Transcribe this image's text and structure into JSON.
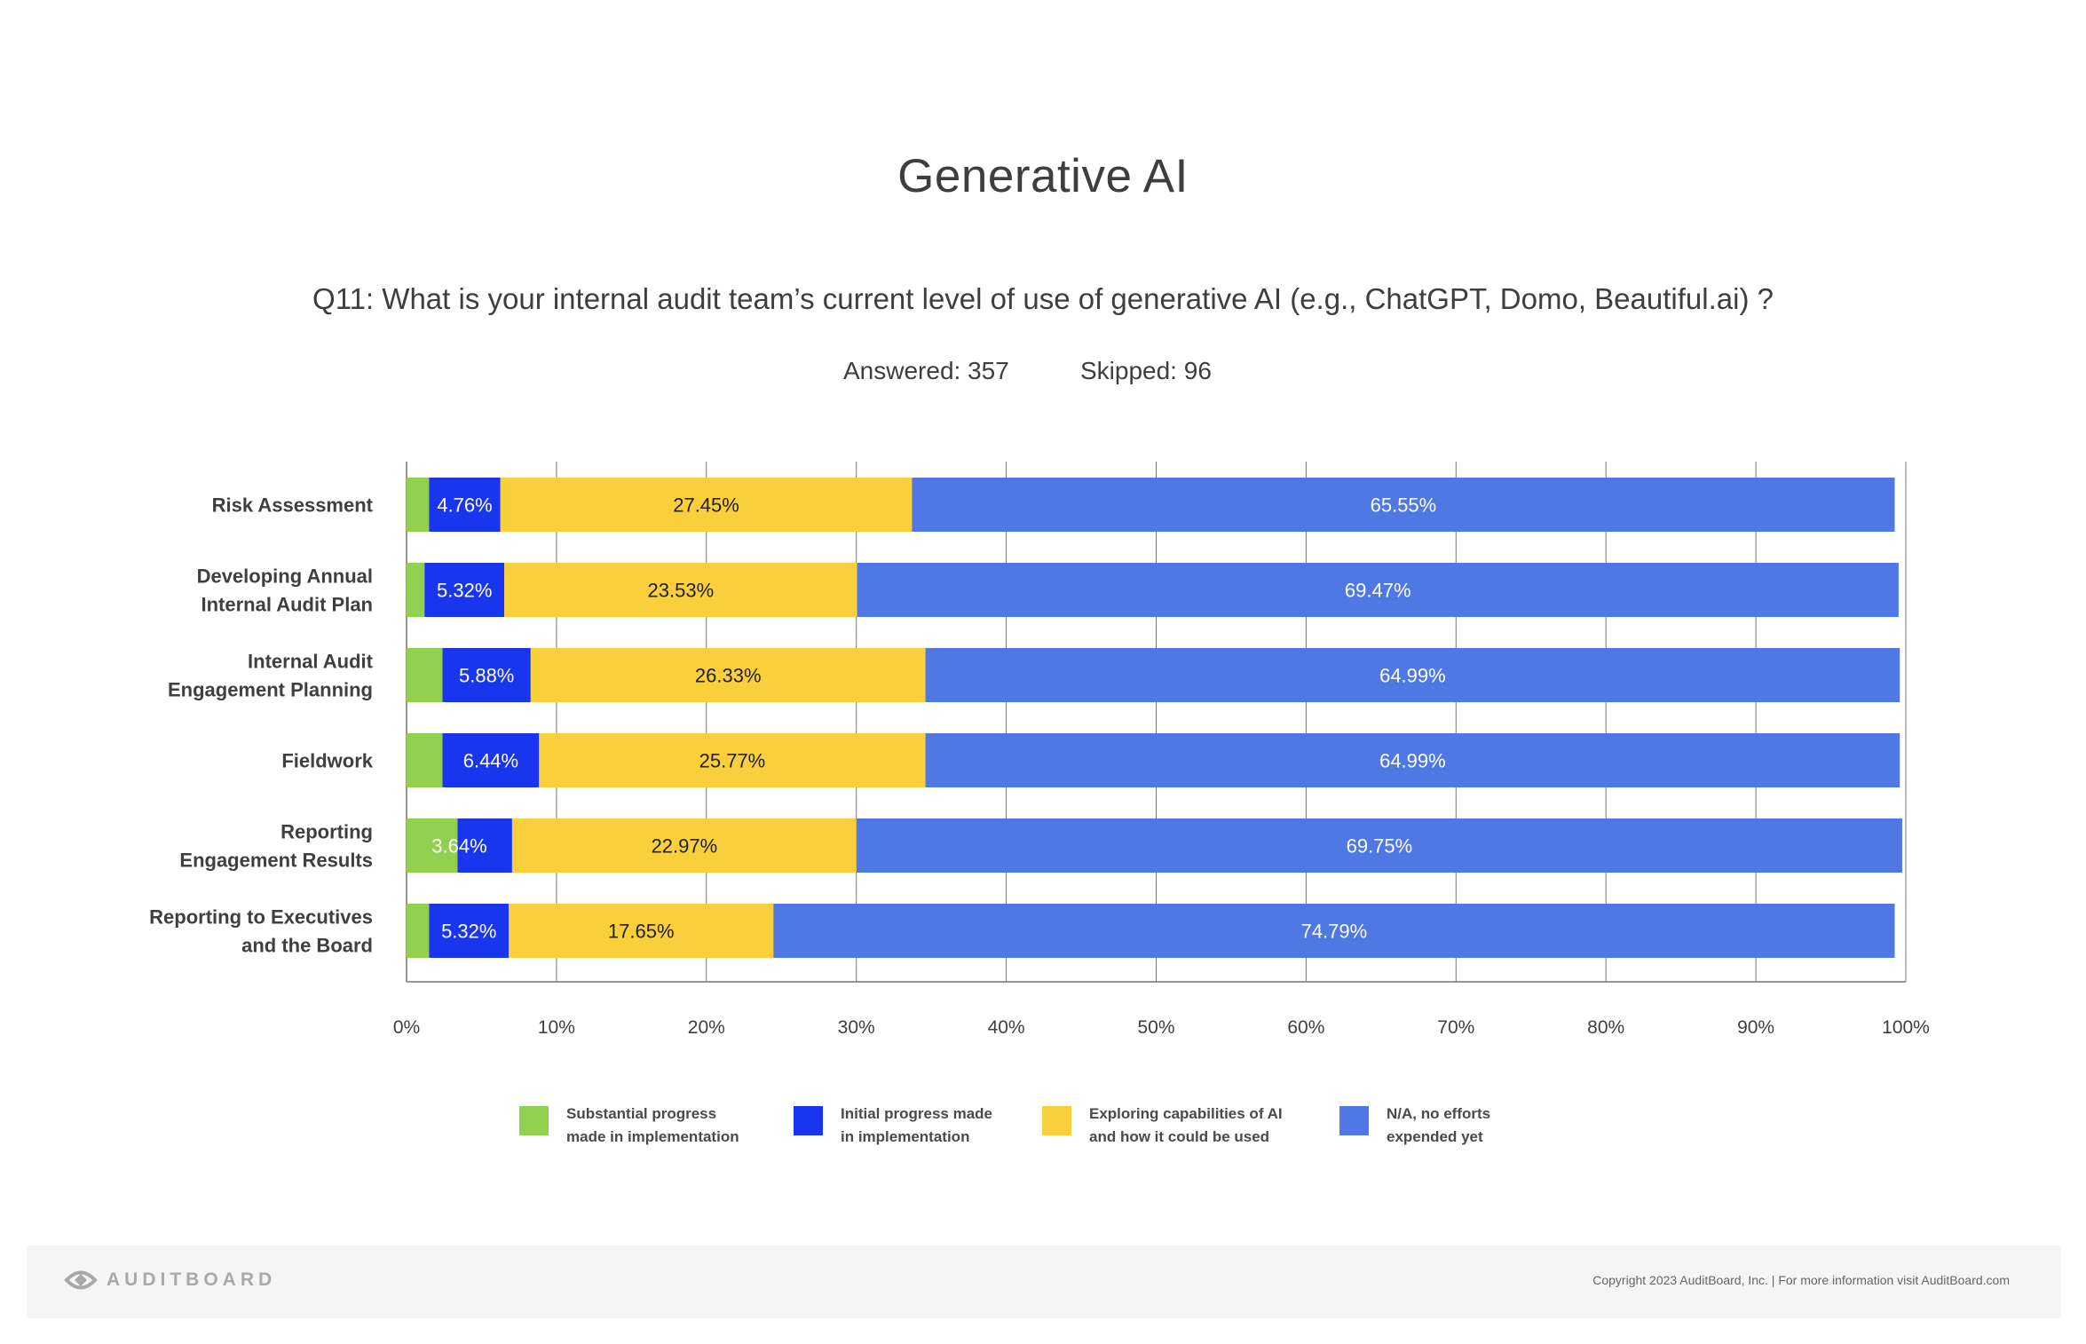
{
  "header": {
    "title": "Generative AI",
    "question": "Q11: What is your internal audit team’s current level of use of generative AI (e.g., ChatGPT, Domo, Beautiful.ai) ?",
    "answered": "Answered: 357",
    "skipped": "Skipped: 96"
  },
  "colors": {
    "substantial": "#92d14f",
    "initial": "#1a35ee",
    "exploring": "#f9d03b",
    "na": "#4f78e5",
    "grid": "#777777"
  },
  "chart_data": {
    "type": "bar",
    "orientation": "horizontal",
    "stacked": true,
    "categories": [
      [
        "Risk Assessment"
      ],
      [
        "Developing Annual",
        "Internal Audit Plan"
      ],
      [
        "Internal Audit",
        "Engagement Planning"
      ],
      [
        "Fieldwork"
      ],
      [
        "Reporting",
        "Engagement Results"
      ],
      [
        "Reporting to Executives",
        "and the Board"
      ]
    ],
    "series": [
      {
        "name": "Substantial progress made in implementation",
        "key": "substantial",
        "values": [
          1.5,
          1.2,
          2.4,
          2.4,
          3.4,
          1.5
        ]
      },
      {
        "name": "Initial progress made in implementation",
        "key": "initial",
        "values": [
          4.76,
          5.32,
          5.88,
          6.44,
          3.64,
          5.32
        ],
        "labels": [
          "4.76%",
          "5.32%",
          "5.88%",
          "6.44%",
          "",
          "5.32%"
        ]
      },
      {
        "name": "Exploring capabilities of AI and how it could be used",
        "key": "exploring",
        "values": [
          27.45,
          23.53,
          26.33,
          25.77,
          22.97,
          17.65
        ],
        "labels": [
          "27.45%",
          "23.53%",
          "26.33%",
          "25.77%",
          "22.97%",
          "17.65%"
        ]
      },
      {
        "name": "N/A, no efforts expended yet",
        "key": "na",
        "values": [
          65.55,
          69.47,
          64.99,
          64.99,
          69.75,
          74.79
        ],
        "labels": [
          "65.55%",
          "69.47%",
          "64.99%",
          "64.99%",
          "69.75%",
          "74.79%"
        ]
      }
    ],
    "extra_labels": {
      "row": 4,
      "text": "3.64%"
    },
    "xlim": [
      0,
      100
    ],
    "xticks": [
      "0%",
      "10%",
      "20%",
      "30%",
      "40%",
      "50%",
      "60%",
      "70%",
      "80%",
      "90%",
      "100%"
    ]
  },
  "legend": [
    {
      "key": "substantial",
      "line1": "Substantial progress",
      "line2": "made in implementation"
    },
    {
      "key": "initial",
      "line1": "Initial progress made",
      "line2": "in implementation"
    },
    {
      "key": "exploring",
      "line1": "Exploring capabilities of AI",
      "line2": "and how it could be used"
    },
    {
      "key": "na",
      "line1": "N/A, no efforts",
      "line2": "expended yet"
    }
  ],
  "footer": {
    "logo": "AUDITBOARD",
    "copyright": "Copyright 2023 AuditBoard, Inc.   |    For more information visit AuditBoard.com"
  }
}
